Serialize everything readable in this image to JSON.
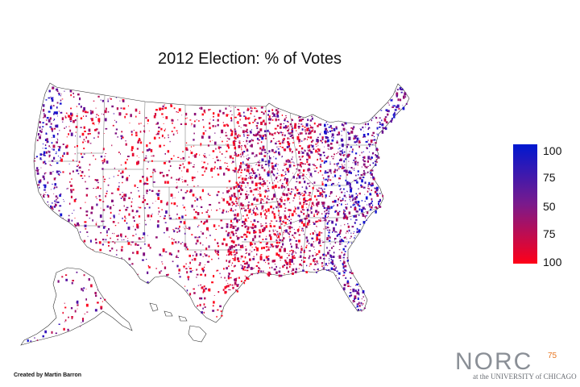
{
  "title": "2012 Election: % of Votes",
  "legend": {
    "ticks": [
      "100",
      "75",
      "50",
      "75",
      "100"
    ],
    "top_color": "#0018d0",
    "mid_color": "#7a1a8c",
    "bottom_color": "#ff0018"
  },
  "credit": "Created by Martin Barron",
  "logo": {
    "word": "NORC",
    "superscript": "75",
    "subtitle": "at the UNIVERSITY of CHICAGO"
  },
  "colors": {
    "democrat": "#1a1ad6",
    "republican": "#ff0020",
    "mixed": "#8a1a9a",
    "state_border": "#333333"
  }
}
